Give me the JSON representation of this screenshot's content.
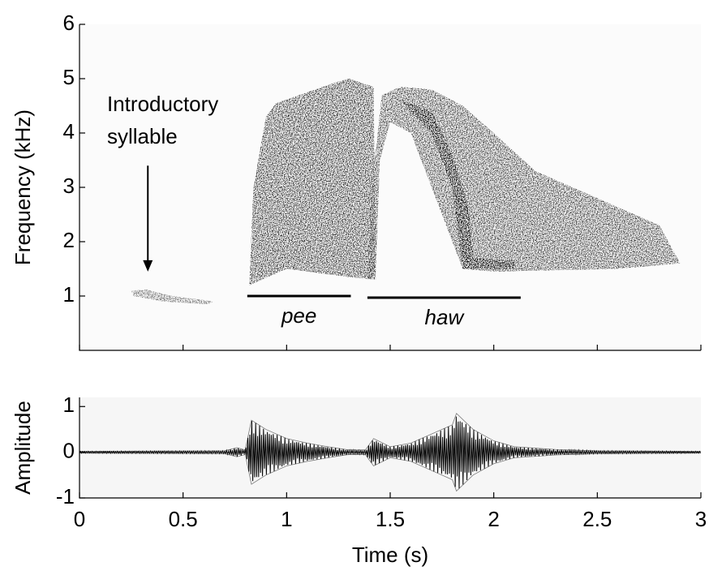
{
  "chart_data": [
    {
      "type": "spectrogram",
      "ylabel": "Frequency (kHz)",
      "xlim": [
        0,
        3
      ],
      "xticks": [
        0,
        0.5,
        1,
        1.5,
        2,
        2.5,
        3
      ],
      "ylim": [
        0,
        6
      ],
      "yticks": [
        1,
        2,
        3,
        4,
        5,
        6
      ],
      "annotations": [
        {
          "lines": [
            "Introductory",
            "syllable"
          ],
          "x": 0.33,
          "y_from": 3.4,
          "y_to": 1.45
        }
      ],
      "segments": [
        {
          "label": "pee",
          "start": 0.81,
          "end": 1.31,
          "y": 1.0
        },
        {
          "label": "haw",
          "start": 1.39,
          "end": 2.13,
          "y": 0.97
        }
      ]
    },
    {
      "type": "waveform",
      "xlabel": "Time (s)",
      "ylabel": "Amplitude",
      "xlim": [
        0,
        3
      ],
      "xticks": [
        0,
        0.5,
        1,
        1.5,
        2,
        2.5,
        3
      ],
      "ylim": [
        -1,
        1.2
      ],
      "yticks": [
        -1,
        0,
        1
      ],
      "x": [
        0,
        0.7,
        0.76,
        0.8,
        0.83,
        0.9,
        1.0,
        1.1,
        1.2,
        1.3,
        1.38,
        1.42,
        1.5,
        1.6,
        1.7,
        1.8,
        1.82,
        1.9,
        2.0,
        2.1,
        2.3,
        2.5,
        3.0
      ],
      "values": [
        0.02,
        0.03,
        0.1,
        0.05,
        0.7,
        0.5,
        0.3,
        0.2,
        0.12,
        0.05,
        0.05,
        0.3,
        0.12,
        0.2,
        0.4,
        0.6,
        0.85,
        0.5,
        0.25,
        0.12,
        0.06,
        0.03,
        0.02
      ]
    }
  ]
}
